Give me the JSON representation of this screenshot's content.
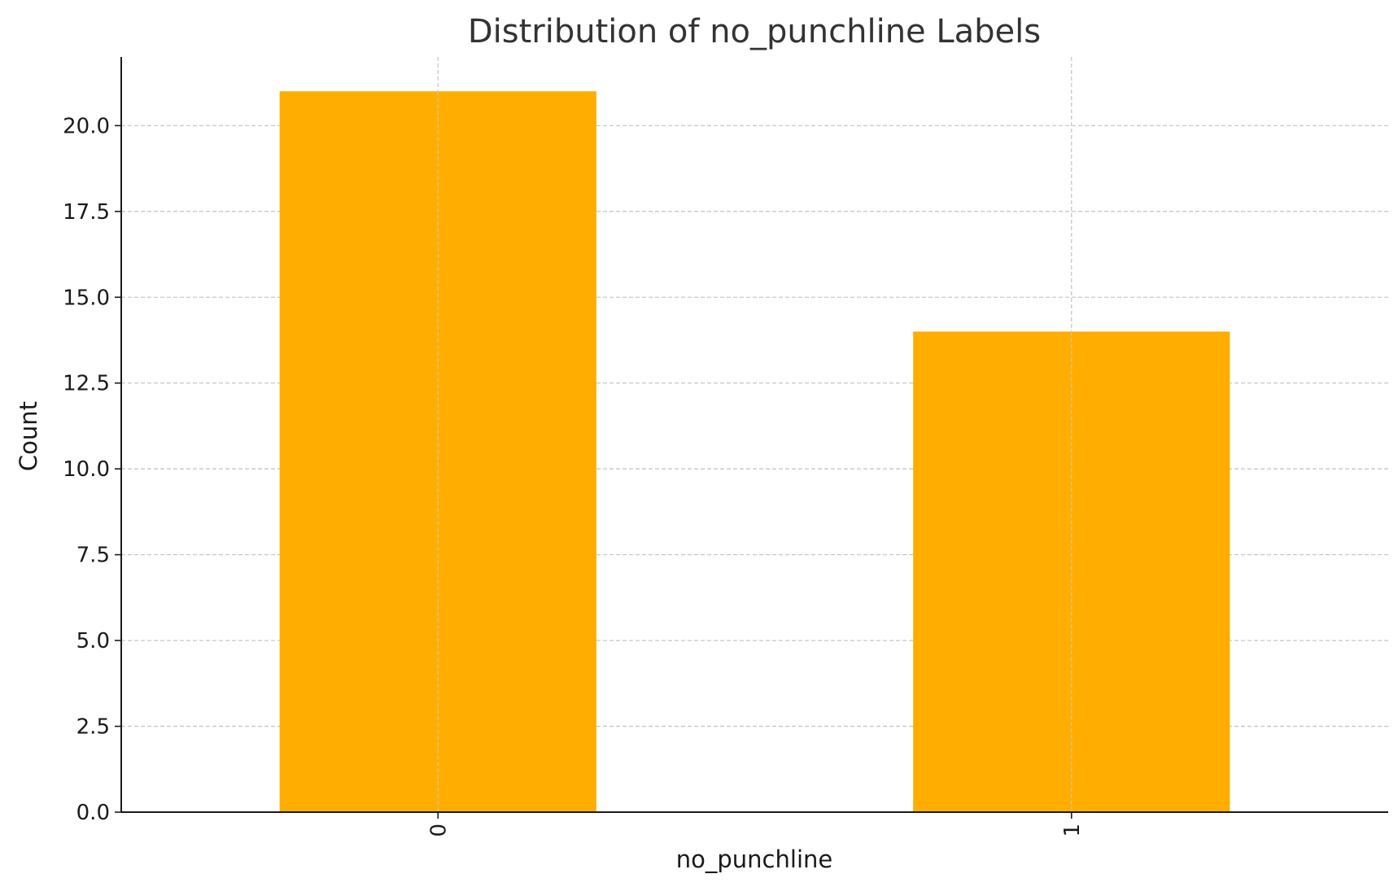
{
  "chart_data": {
    "type": "bar",
    "title": "Distribution of no_punchline Labels",
    "xlabel": "no_punchline",
    "ylabel": "Count",
    "categories": [
      "0",
      "1"
    ],
    "values": [
      21,
      14
    ],
    "ylim": [
      0,
      22
    ],
    "yticks": [
      0,
      2.5,
      5,
      7.5,
      10,
      12.5,
      15,
      17.5,
      20
    ],
    "ytick_labels": [
      "0.0",
      "2.5",
      "5.0",
      "7.5",
      "10.0",
      "12.5",
      "15.0",
      "17.5",
      "20.0"
    ],
    "grid": true,
    "legend": "none",
    "bar_color": "#FFAE00",
    "grid_color": "#c8c8c8",
    "axis_color": "#1a1a1a"
  }
}
